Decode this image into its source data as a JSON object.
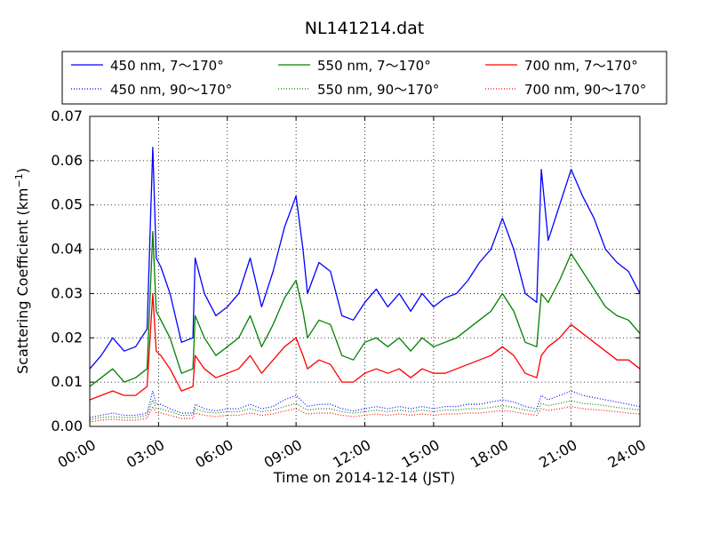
{
  "chart_data": {
    "type": "line",
    "title": "NL141214.dat",
    "xlabel": "Time on 2014-12-14 (JST)",
    "ylabel_text": "Scattering Coefficient (km",
    "ylabel_sup": "−1",
    "ylabel_close": ")",
    "xlim": [
      0,
      24
    ],
    "ylim": [
      0,
      0.07
    ],
    "x_ticks": [
      0,
      3,
      6,
      9,
      12,
      15,
      18,
      21,
      24
    ],
    "x_tick_labels": [
      "00:00",
      "03:00",
      "06:00",
      "09:00",
      "12:00",
      "15:00",
      "18:00",
      "21:00",
      "24:00"
    ],
    "y_ticks": [
      0,
      0.01,
      0.02,
      0.03,
      0.04,
      0.05,
      0.06,
      0.07
    ],
    "y_tick_labels": [
      "0.00",
      "0.01",
      "0.02",
      "0.03",
      "0.04",
      "0.05",
      "0.06",
      "0.07"
    ],
    "grid": true,
    "legend_placement": "top-center, above plot, 3 columns",
    "x": [
      0.0,
      0.5,
      1.0,
      1.5,
      2.0,
      2.5,
      2.75,
      2.9,
      3.1,
      3.5,
      4.0,
      4.5,
      4.6,
      5.0,
      5.5,
      6.0,
      6.5,
      7.0,
      7.5,
      8.0,
      8.5,
      9.0,
      9.3,
      9.5,
      10.0,
      10.5,
      11.0,
      11.5,
      12.0,
      12.5,
      13.0,
      13.5,
      14.0,
      14.5,
      15.0,
      15.5,
      16.0,
      16.5,
      17.0,
      17.5,
      18.0,
      18.5,
      19.0,
      19.5,
      19.7,
      20.0,
      20.5,
      21.0,
      21.5,
      22.0,
      22.5,
      23.0,
      23.5,
      24.0
    ],
    "series": [
      {
        "name": "450 nm, 7～170°",
        "color": "#0000ff",
        "style": "solid",
        "values": [
          0.013,
          0.016,
          0.02,
          0.017,
          0.018,
          0.022,
          0.063,
          0.038,
          0.036,
          0.03,
          0.019,
          0.02,
          0.038,
          0.03,
          0.025,
          0.027,
          0.03,
          0.038,
          0.027,
          0.035,
          0.045,
          0.052,
          0.04,
          0.03,
          0.037,
          0.035,
          0.025,
          0.024,
          0.028,
          0.031,
          0.027,
          0.03,
          0.026,
          0.03,
          0.027,
          0.029,
          0.03,
          0.033,
          0.037,
          0.04,
          0.047,
          0.04,
          0.03,
          0.028,
          0.058,
          0.042,
          0.05,
          0.058,
          0.052,
          0.047,
          0.04,
          0.037,
          0.035,
          0.03
        ]
      },
      {
        "name": "550 nm, 7～170°",
        "color": "#008000",
        "style": "solid",
        "values": [
          0.009,
          0.011,
          0.013,
          0.01,
          0.011,
          0.013,
          0.044,
          0.026,
          0.024,
          0.02,
          0.012,
          0.013,
          0.025,
          0.02,
          0.016,
          0.018,
          0.02,
          0.025,
          0.018,
          0.023,
          0.029,
          0.033,
          0.026,
          0.02,
          0.024,
          0.023,
          0.016,
          0.015,
          0.019,
          0.02,
          0.018,
          0.02,
          0.017,
          0.02,
          0.018,
          0.019,
          0.02,
          0.022,
          0.024,
          0.026,
          0.03,
          0.026,
          0.019,
          0.018,
          0.03,
          0.028,
          0.033,
          0.039,
          0.035,
          0.031,
          0.027,
          0.025,
          0.024,
          0.021
        ]
      },
      {
        "name": "700 nm, 7～170°",
        "color": "#ff0000",
        "style": "solid",
        "values": [
          0.006,
          0.007,
          0.008,
          0.007,
          0.007,
          0.009,
          0.03,
          0.017,
          0.016,
          0.013,
          0.008,
          0.009,
          0.016,
          0.013,
          0.011,
          0.012,
          0.013,
          0.016,
          0.012,
          0.015,
          0.018,
          0.02,
          0.016,
          0.013,
          0.015,
          0.014,
          0.01,
          0.01,
          0.012,
          0.013,
          0.012,
          0.013,
          0.011,
          0.013,
          0.012,
          0.012,
          0.013,
          0.014,
          0.015,
          0.016,
          0.018,
          0.016,
          0.012,
          0.011,
          0.016,
          0.018,
          0.02,
          0.023,
          0.021,
          0.019,
          0.017,
          0.015,
          0.015,
          0.013
        ]
      },
      {
        "name": "450 nm, 90～170°",
        "color": "#0000ff",
        "style": "dotted",
        "values": [
          0.002,
          0.0025,
          0.003,
          0.0025,
          0.0025,
          0.003,
          0.008,
          0.005,
          0.005,
          0.004,
          0.003,
          0.003,
          0.005,
          0.004,
          0.0035,
          0.004,
          0.004,
          0.005,
          0.004,
          0.0045,
          0.006,
          0.007,
          0.0055,
          0.0045,
          0.005,
          0.005,
          0.004,
          0.0035,
          0.004,
          0.0045,
          0.004,
          0.0045,
          0.004,
          0.0045,
          0.004,
          0.0045,
          0.0045,
          0.005,
          0.005,
          0.0055,
          0.006,
          0.0055,
          0.0045,
          0.004,
          0.007,
          0.006,
          0.007,
          0.008,
          0.007,
          0.0065,
          0.006,
          0.0055,
          0.005,
          0.0045
        ]
      },
      {
        "name": "550 nm, 90～170°",
        "color": "#008000",
        "style": "dotted",
        "values": [
          0.0015,
          0.002,
          0.0022,
          0.002,
          0.002,
          0.0025,
          0.006,
          0.004,
          0.004,
          0.0033,
          0.0025,
          0.0025,
          0.004,
          0.0033,
          0.003,
          0.0033,
          0.0033,
          0.004,
          0.0033,
          0.0037,
          0.0045,
          0.0052,
          0.0042,
          0.0037,
          0.004,
          0.004,
          0.0033,
          0.003,
          0.0033,
          0.0037,
          0.0033,
          0.0037,
          0.0033,
          0.0037,
          0.0033,
          0.0037,
          0.0037,
          0.004,
          0.004,
          0.0043,
          0.0047,
          0.0043,
          0.0037,
          0.0033,
          0.0052,
          0.0047,
          0.0052,
          0.0058,
          0.0052,
          0.005,
          0.0047,
          0.0043,
          0.004,
          0.0037
        ]
      },
      {
        "name": "700 nm, 90～170°",
        "color": "#ff0000",
        "style": "dotted",
        "values": [
          0.001,
          0.0014,
          0.0016,
          0.0014,
          0.0014,
          0.0018,
          0.0045,
          0.003,
          0.003,
          0.0025,
          0.0018,
          0.0018,
          0.003,
          0.0025,
          0.0022,
          0.0025,
          0.0025,
          0.003,
          0.0025,
          0.0028,
          0.0035,
          0.004,
          0.0032,
          0.0028,
          0.003,
          0.003,
          0.0025,
          0.0022,
          0.0025,
          0.0028,
          0.0025,
          0.0028,
          0.0025,
          0.0028,
          0.0025,
          0.0028,
          0.0028,
          0.003,
          0.003,
          0.0033,
          0.0036,
          0.0033,
          0.0028,
          0.0025,
          0.004,
          0.0036,
          0.004,
          0.0045,
          0.004,
          0.0038,
          0.0036,
          0.0033,
          0.003,
          0.0028
        ]
      }
    ]
  }
}
